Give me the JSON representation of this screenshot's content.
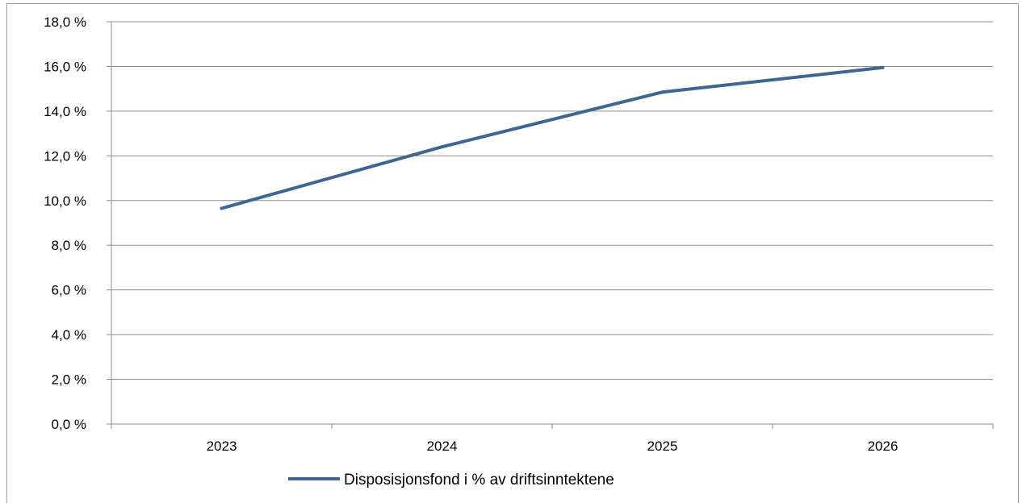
{
  "chart_data": {
    "type": "line",
    "categories": [
      "2023",
      "2024",
      "2025",
      "2026"
    ],
    "series": [
      {
        "name": "Disposisjonsfond i % av driftsinntektene",
        "values": [
          9.65,
          12.4,
          14.85,
          15.95
        ],
        "color": "#3f6593"
      }
    ],
    "ylim": [
      0,
      18
    ],
    "y_ticks": [
      0,
      2,
      4,
      6,
      8,
      10,
      12,
      14,
      16,
      18
    ],
    "y_tick_labels": [
      "0,0 %",
      "2,0 %",
      "4,0 %",
      "6,0 %",
      "8,0 %",
      "10,0 %",
      "12,0 %",
      "14,0 %",
      "16,0 %",
      "18,0 %"
    ],
    "grid": "horizontal",
    "legend": "bottom-center",
    "gridline_color": "#8c8c8c",
    "axis_color": "#8c8c8c"
  }
}
